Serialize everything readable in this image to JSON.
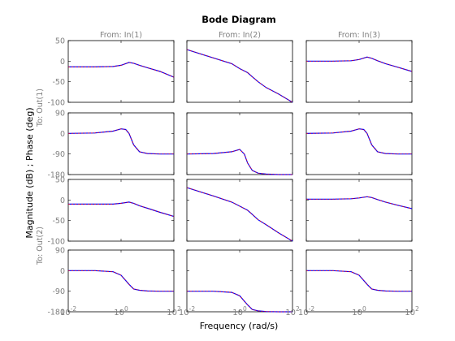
{
  "chart_data": {
    "type": "line",
    "title": "Bode Diagram",
    "xlabel": "Frequency  (rad/s)",
    "ylabel": "Magnitude (dB) ; Phase (deg)",
    "x_scale": "log",
    "xlim": [
      0.01,
      100
    ],
    "x_ticks": [
      {
        "value": 0.01,
        "base": "10",
        "exp": "-2"
      },
      {
        "value": 1,
        "base": "10",
        "exp": "0"
      },
      {
        "value": 100,
        "base": "10",
        "exp": "2"
      }
    ],
    "columns": [
      "From: In(1)",
      "From: In(2)",
      "From: In(3)"
    ],
    "row_groups": [
      "To: Out(1)",
      "To: Out(2)"
    ],
    "grid": false,
    "colors": {
      "magnitude": "#0000ff",
      "phase": "#ff0000",
      "axes": "#000000",
      "tick_text": "#808080"
    },
    "rows": [
      {
        "kind": "magnitude",
        "output": "To: Out(1)",
        "ylim": [
          -100,
          50
        ],
        "yticks": [
          50,
          0,
          -50,
          -100
        ]
      },
      {
        "kind": "phase",
        "output": "To: Out(1)",
        "ylim": [
          -180,
          90
        ],
        "yticks": [
          90,
          0,
          -90,
          -180
        ]
      },
      {
        "kind": "magnitude",
        "output": "To: Out(2)",
        "ylim": [
          -100,
          50
        ],
        "yticks": [
          50,
          0,
          -50,
          -100
        ]
      },
      {
        "kind": "phase",
        "output": "To: Out(2)",
        "ylim": [
          -180,
          90
        ],
        "yticks": [
          90,
          0,
          -90,
          -180
        ]
      }
    ],
    "panels": [
      [
        {
          "x": [
            0.01,
            0.1,
            0.5,
            1,
            2,
            3,
            5,
            10,
            30,
            100
          ],
          "y": [
            -14,
            -14,
            -13,
            -10,
            -3,
            -5,
            -10,
            -16,
            -25,
            -39
          ]
        },
        {
          "x": [
            0.01,
            0.1,
            0.5,
            1,
            2,
            3,
            5,
            10,
            30,
            100
          ],
          "y": [
            28,
            8,
            -6,
            -18,
            -28,
            -38,
            -50,
            -64,
            -80,
            -100
          ]
        },
        {
          "x": [
            0.01,
            0.1,
            0.5,
            1,
            2,
            3,
            5,
            10,
            30,
            100
          ],
          "y": [
            0,
            0,
            1,
            4,
            10,
            7,
            1,
            -6,
            -15,
            -25
          ]
        }
      ],
      [
        {
          "x": [
            0.01,
            0.1,
            0.5,
            1,
            1.5,
            2,
            3,
            5,
            10,
            30,
            100
          ],
          "y": [
            0,
            2,
            10,
            20,
            17,
            0,
            -50,
            -80,
            -88,
            -90,
            -90
          ]
        },
        {
          "x": [
            0.01,
            0.1,
            0.5,
            1,
            1.5,
            2,
            3,
            5,
            10,
            30,
            100
          ],
          "y": [
            -90,
            -88,
            -80,
            -70,
            -90,
            -130,
            -162,
            -174,
            -178,
            -180,
            -180
          ]
        },
        {
          "x": [
            0.01,
            0.1,
            0.5,
            1,
            1.5,
            2,
            3,
            5,
            10,
            30,
            100
          ],
          "y": [
            0,
            2,
            10,
            20,
            17,
            0,
            -50,
            -80,
            -88,
            -90,
            -90
          ]
        }
      ],
      [
        {
          "x": [
            0.01,
            0.1,
            0.5,
            1,
            2,
            3,
            5,
            10,
            30,
            100
          ],
          "y": [
            -10,
            -10,
            -10,
            -8,
            -5,
            -8,
            -14,
            -20,
            -30,
            -40
          ]
        },
        {
          "x": [
            0.01,
            0.1,
            0.5,
            1,
            2,
            3,
            5,
            10,
            30,
            100
          ],
          "y": [
            30,
            10,
            -5,
            -15,
            -25,
            -35,
            -48,
            -60,
            -80,
            -100
          ]
        },
        {
          "x": [
            0.01,
            0.1,
            0.5,
            1,
            2,
            3,
            5,
            10,
            30,
            100
          ],
          "y": [
            2,
            2,
            3,
            5,
            8,
            6,
            1,
            -5,
            -13,
            -21
          ]
        }
      ],
      [
        {
          "x": [
            0.01,
            0.1,
            0.5,
            1,
            2,
            3,
            5,
            10,
            30,
            100
          ],
          "y": [
            0,
            0,
            -5,
            -20,
            -60,
            -80,
            -86,
            -89,
            -90,
            -90
          ]
        },
        {
          "x": [
            0.01,
            0.1,
            0.5,
            1,
            2,
            3,
            5,
            10,
            30,
            100
          ],
          "y": [
            -90,
            -90,
            -95,
            -110,
            -150,
            -170,
            -176,
            -179,
            -180,
            -180
          ]
        },
        {
          "x": [
            0.01,
            0.1,
            0.5,
            1,
            2,
            3,
            5,
            10,
            30,
            100
          ],
          "y": [
            0,
            0,
            -5,
            -20,
            -60,
            -80,
            -86,
            -89,
            -90,
            -90
          ]
        }
      ]
    ]
  }
}
